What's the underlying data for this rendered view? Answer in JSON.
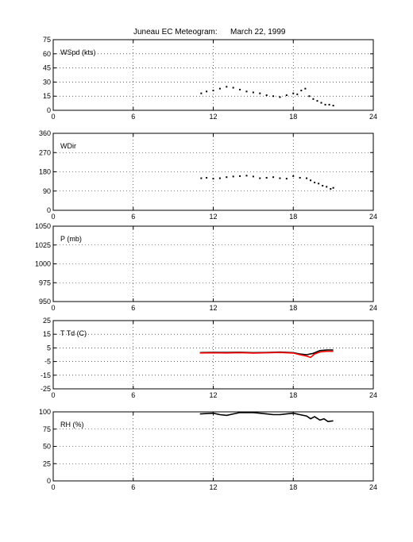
{
  "title": "Juneau EC Meteogram:",
  "date": "March 22, 1999",
  "colors": {
    "primary": "#000000",
    "secondary": "#ff0000"
  },
  "chart_data": [
    {
      "type": "scatter",
      "label": "WSpd (kts)",
      "xlim": [
        0,
        24
      ],
      "xticks": [
        0,
        6,
        12,
        18,
        24
      ],
      "ylim": [
        0,
        75
      ],
      "yticks": [
        0,
        15,
        30,
        45,
        60,
        75
      ],
      "grid": true,
      "series": [
        {
          "color": "#000000",
          "x": [
            11.1,
            11.5,
            12.0,
            12.5,
            13.0,
            13.5,
            14.0,
            14.5,
            15.0,
            15.5,
            16.0,
            16.5,
            17.0,
            17.5,
            18.0,
            18.3,
            18.6,
            18.9,
            19.2,
            19.5,
            19.8,
            20.1,
            20.4,
            20.7,
            21.0
          ],
          "y": [
            18,
            20,
            21,
            23,
            25,
            24,
            22,
            20,
            19,
            18,
            16,
            15,
            14,
            16,
            18,
            17,
            21,
            23,
            15,
            12,
            10,
            8,
            6,
            6,
            5
          ]
        }
      ]
    },
    {
      "type": "scatter",
      "label": "WDir",
      "xlim": [
        0,
        24
      ],
      "xticks": [
        0,
        6,
        12,
        18,
        24
      ],
      "ylim": [
        0,
        360
      ],
      "yticks": [
        0,
        90,
        180,
        270,
        360
      ],
      "grid": true,
      "series": [
        {
          "color": "#000000",
          "x": [
            11.1,
            11.5,
            12.0,
            12.5,
            13.0,
            13.5,
            14.0,
            14.5,
            15.0,
            15.5,
            16.0,
            16.5,
            17.0,
            17.5,
            18.0,
            18.5,
            19.0,
            19.3,
            19.6,
            19.9,
            20.2,
            20.5,
            20.8,
            21.0
          ],
          "y": [
            150,
            152,
            148,
            150,
            155,
            158,
            160,
            162,
            158,
            150,
            152,
            155,
            150,
            148,
            160,
            152,
            150,
            140,
            130,
            125,
            115,
            110,
            100,
            105
          ]
        }
      ]
    },
    {
      "type": "scatter",
      "label": "P (mb)",
      "xlim": [
        0,
        24
      ],
      "xticks": [
        0,
        6,
        12,
        18,
        24
      ],
      "ylim": [
        950,
        1050
      ],
      "yticks": [
        950,
        975,
        1000,
        1025,
        1050
      ],
      "grid": true,
      "series": []
    },
    {
      "type": "line",
      "label": "T Td (C)",
      "xlim": [
        0,
        24
      ],
      "xticks": [
        0,
        6,
        12,
        18,
        24
      ],
      "ylim": [
        -25,
        25
      ],
      "yticks": [
        -25,
        -15,
        -5,
        5,
        15,
        25
      ],
      "grid": true,
      "series": [
        {
          "color": "#000000",
          "x": [
            11.0,
            12.0,
            13.0,
            14.0,
            15.0,
            16.0,
            17.0,
            18.0,
            18.5,
            19.0,
            19.5,
            20.0,
            20.5,
            21.0
          ],
          "y": [
            1.5,
            1.7,
            1.6,
            1.8,
            1.5,
            1.6,
            1.9,
            1.5,
            0.5,
            0.0,
            1.0,
            3.0,
            3.5,
            3.5
          ]
        },
        {
          "color": "#ff0000",
          "x": [
            11.0,
            12.0,
            13.0,
            14.0,
            15.0,
            16.0,
            17.0,
            18.0,
            18.5,
            19.0,
            19.3,
            19.6,
            20.0,
            20.5,
            21.0
          ],
          "y": [
            1.3,
            1.4,
            1.3,
            1.5,
            1.2,
            1.4,
            1.6,
            1.2,
            0.0,
            -1.0,
            -2.0,
            0.5,
            2.0,
            2.5,
            2.5
          ]
        }
      ]
    },
    {
      "type": "line",
      "label": "RH (%)",
      "xlim": [
        0,
        24
      ],
      "xticks": [
        0,
        6,
        12,
        18,
        24
      ],
      "ylim": [
        0,
        100
      ],
      "yticks": [
        0,
        25,
        50,
        75,
        100
      ],
      "grid": true,
      "series": [
        {
          "color": "#000000",
          "x": [
            11.0,
            12.0,
            12.5,
            13.0,
            13.5,
            14.0,
            15.0,
            15.5,
            16.0,
            16.5,
            17.0,
            17.5,
            18.0,
            18.5,
            19.0,
            19.3,
            19.6,
            20.0,
            20.3,
            20.6,
            21.0
          ],
          "y": [
            97,
            98,
            96,
            95,
            97,
            99,
            99,
            98,
            97,
            96,
            96,
            97,
            98,
            96,
            94,
            90,
            93,
            88,
            90,
            86,
            87
          ]
        }
      ]
    }
  ]
}
